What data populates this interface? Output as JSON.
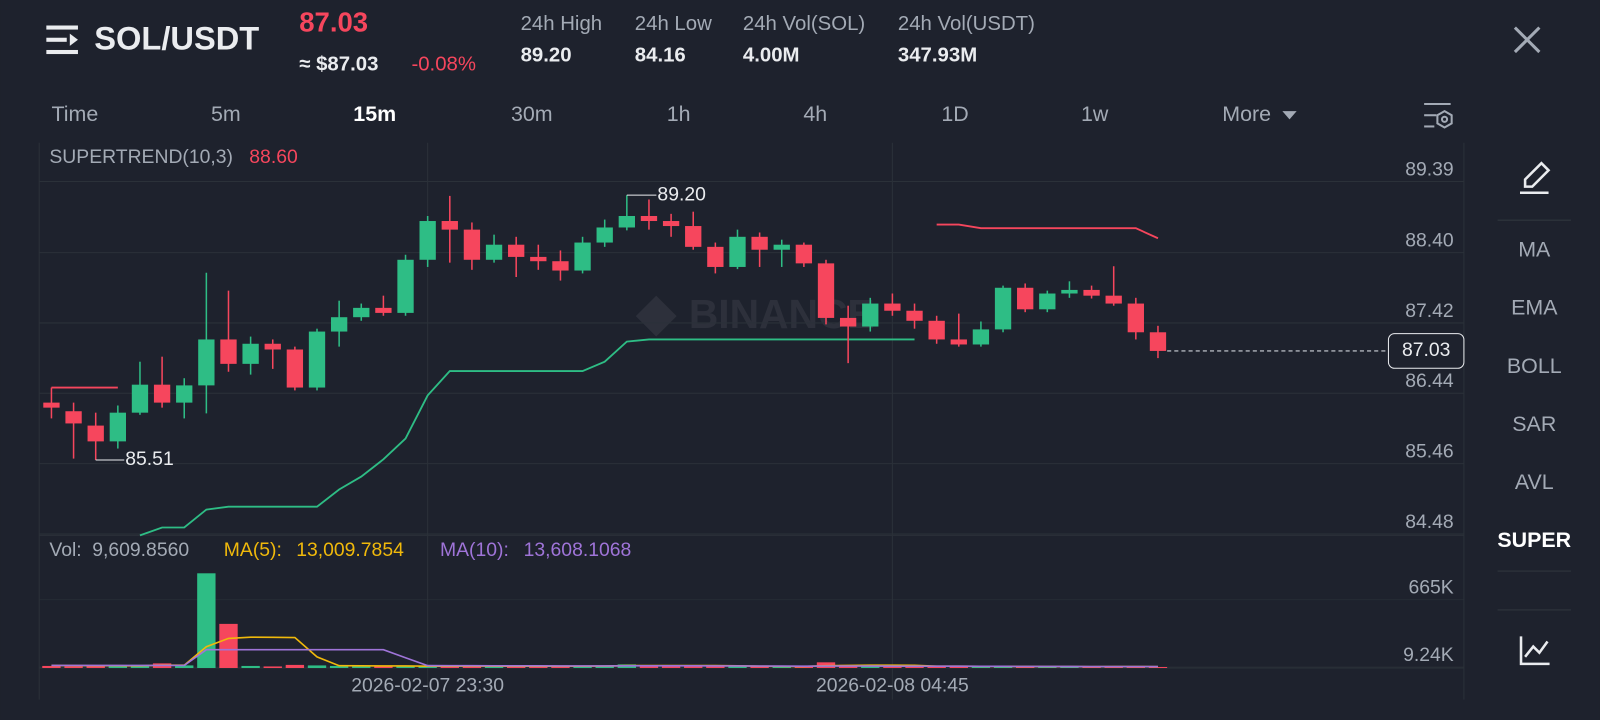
{
  "header": {
    "pair": "SOL/USDT",
    "last_price": "87.03",
    "usd_price": "≈ $87.03",
    "change": "-0.08%",
    "stats": [
      {
        "label": "24h High",
        "value": "89.20"
      },
      {
        "label": "24h Low",
        "value": "84.16"
      },
      {
        "label": "24h Vol(SOL)",
        "value": "4.00M"
      },
      {
        "label": "24h Vol(USDT)",
        "value": "347.93M"
      }
    ]
  },
  "intervals": {
    "items": [
      "Time",
      "5m",
      "15m",
      "30m",
      "1h",
      "4h",
      "1D",
      "1w",
      "More"
    ],
    "active": 2
  },
  "indicators": {
    "items": [
      "MA",
      "EMA",
      "BOLL",
      "SAR",
      "AVL",
      "SUPER"
    ],
    "active": 5
  },
  "watermark": "BINANCE",
  "chart_data": [
    {
      "type": "candlestick",
      "categories": [
        null,
        null,
        null,
        null,
        null,
        null,
        null,
        null,
        null,
        null,
        null,
        null,
        null,
        null,
        null,
        null,
        null,
        "2026-02-07 23:30",
        null,
        null,
        null,
        null,
        null,
        null,
        null,
        null,
        null,
        null,
        null,
        null,
        null,
        null,
        null,
        null,
        null,
        null,
        null,
        null,
        "2026-02-08 04:45",
        null,
        null,
        null,
        null,
        null,
        null,
        null,
        null,
        null,
        null,
        null,
        null
      ],
      "open": [
        86.31,
        86.19,
        85.99,
        85.77,
        86.17,
        86.56,
        86.31,
        86.55,
        87.19,
        86.85,
        87.13,
        87.05,
        86.52,
        87.3,
        87.5,
        87.63,
        87.56,
        88.3,
        88.84,
        88.72,
        88.3,
        88.51,
        88.34,
        88.28,
        88.15,
        88.54,
        88.75,
        88.91,
        88.84,
        88.77,
        88.48,
        88.2,
        88.62,
        88.44,
        88.51,
        88.25,
        87.49,
        87.37,
        87.69,
        87.59,
        87.45,
        87.19,
        87.12,
        87.33,
        87.91,
        87.61,
        87.83,
        87.88,
        87.8,
        87.69,
        87.29
      ],
      "high": [
        86.52,
        86.31,
        86.17,
        86.27,
        86.88,
        86.95,
        86.65,
        88.12,
        87.87,
        87.23,
        87.19,
        87.09,
        87.34,
        87.73,
        87.69,
        87.8,
        88.37,
        88.91,
        89.19,
        88.82,
        88.65,
        88.62,
        88.51,
        88.43,
        88.62,
        88.86,
        89.2,
        89.14,
        88.94,
        88.97,
        88.54,
        88.72,
        88.68,
        88.58,
        88.54,
        88.3,
        87.66,
        87.77,
        87.83,
        87.69,
        87.52,
        87.55,
        87.44,
        87.94,
        87.97,
        87.87,
        88.0,
        87.94,
        88.21,
        87.77,
        87.38
      ],
      "low": [
        86.09,
        85.53,
        85.51,
        85.67,
        86.14,
        86.24,
        86.09,
        86.16,
        86.74,
        86.7,
        86.78,
        86.48,
        86.48,
        87.09,
        87.45,
        87.52,
        87.52,
        88.2,
        88.26,
        88.16,
        88.26,
        88.06,
        88.16,
        88.01,
        88.11,
        88.48,
        88.71,
        88.72,
        88.62,
        88.44,
        88.11,
        88.17,
        88.2,
        88.2,
        88.2,
        87.4,
        86.86,
        87.3,
        87.52,
        87.34,
        87.13,
        87.09,
        87.09,
        87.29,
        87.57,
        87.57,
        87.77,
        87.76,
        87.66,
        87.19,
        86.93
      ],
      "close": [
        86.24,
        86.02,
        85.77,
        86.17,
        86.56,
        86.31,
        86.55,
        87.19,
        86.85,
        87.13,
        87.05,
        86.52,
        87.3,
        87.5,
        87.63,
        87.56,
        88.3,
        88.84,
        88.72,
        88.3,
        88.51,
        88.34,
        88.28,
        88.15,
        88.54,
        88.75,
        88.91,
        88.84,
        88.77,
        88.48,
        88.2,
        88.62,
        88.44,
        88.51,
        88.25,
        87.49,
        87.37,
        87.69,
        87.59,
        87.45,
        87.19,
        87.12,
        87.33,
        87.91,
        87.61,
        87.83,
        87.88,
        87.8,
        87.69,
        87.29,
        87.03
      ],
      "up_color": "#2ebd85",
      "down_color": "#f6465d",
      "ylim": [
        84.46,
        89.93
      ],
      "yticks": [
        89.39,
        {
          "value": 88.4,
          "label": "88.40"
        },
        87.42,
        86.44,
        85.46,
        84.48
      ],
      "grid": true,
      "indicator": {
        "name": "SUPERTREND(10,3)",
        "value_label": "88.60",
        "series": [
          {
            "color": "#2ebd85",
            "values": [
              null,
              null,
              null,
              null,
              84.46,
              84.57,
              84.57,
              84.82,
              84.86,
              84.86,
              84.86,
              84.86,
              84.86,
              85.1,
              85.28,
              85.52,
              85.81,
              86.41,
              86.75,
              86.75,
              86.75,
              86.75,
              86.75,
              86.75,
              86.75,
              86.88,
              87.16,
              87.19,
              87.19,
              87.19,
              87.19,
              87.19,
              87.19,
              87.19,
              87.19,
              87.19,
              87.19,
              87.19,
              87.19,
              87.19,
              null,
              null,
              null,
              null,
              null,
              null,
              null,
              null,
              null,
              null,
              null
            ]
          },
          {
            "color": "#f6465d",
            "values": [
              86.52,
              86.52,
              86.52,
              86.52,
              null,
              null,
              null,
              null,
              null,
              null,
              null,
              null,
              null,
              null,
              null,
              null,
              null,
              null,
              null,
              null,
              null,
              null,
              null,
              null,
              null,
              null,
              null,
              null,
              null,
              null,
              null,
              null,
              null,
              null,
              null,
              null,
              null,
              null,
              null,
              null,
              88.79,
              88.79,
              88.74,
              88.74,
              88.74,
              88.74,
              88.74,
              88.74,
              88.74,
              88.74,
              88.6
            ]
          }
        ]
      },
      "high_marker": {
        "index": 26,
        "label": "89.20"
      },
      "low_marker": {
        "index": 2,
        "label": "85.51"
      },
      "last_price_label": "87.03"
    },
    {
      "type": "bar",
      "name": "Vol:",
      "value_label": "9,609.8560",
      "values": [
        20000,
        15000,
        25000,
        18000,
        30000,
        45000,
        25000,
        921000,
        429000,
        20000,
        15000,
        30000,
        25000,
        20000,
        15000,
        18000,
        22000,
        15000,
        20000,
        18000,
        15000,
        20000,
        15000,
        15000,
        20000,
        25000,
        35000,
        25000,
        20000,
        15000,
        18000,
        15000,
        15000,
        12000,
        15000,
        55000,
        30000,
        20000,
        15000,
        12000,
        12000,
        15000,
        12000,
        20000,
        15000,
        12000,
        12000,
        12000,
        15000,
        18000,
        9609.856
      ],
      "ylim": [
        0,
        1240000
      ],
      "yticks": [
        {
          "value": 665000,
          "label": "665K"
        },
        {
          "value": 9240,
          "label": "9.24K"
        }
      ],
      "series": [
        {
          "name": "MA(5):",
          "value_label": "13,009.7854",
          "color": "#f0b90b",
          "values": [
            25000,
            24000,
            22000,
            22000,
            21000,
            27000,
            27000,
            207000,
            288000,
            300000,
            298000,
            296000,
            108000,
            22000,
            21000,
            20000,
            20000,
            18000,
            18000,
            19000,
            18000,
            18000,
            18000,
            17000,
            18000,
            19000,
            23000,
            24000,
            24000,
            24000,
            23000,
            21000,
            18000,
            16000,
            15000,
            22000,
            25000,
            27000,
            27000,
            26000,
            18000,
            17000,
            16000,
            16000,
            15000,
            14000,
            14000,
            13000,
            13500,
            14000,
            13009.7854
          ]
        },
        {
          "name": "MA(10):",
          "value_label": "13,608.1068",
          "color": "#9f74d8",
          "values": [
            25000,
            25000,
            25000,
            25000,
            25000,
            25000,
            25000,
            178000,
            178000,
            178000,
            178000,
            178000,
            178000,
            178000,
            178000,
            178000,
            100000,
            23000,
            22000,
            22000,
            21000,
            21000,
            21000,
            20000,
            20000,
            20000,
            21000,
            21000,
            21000,
            21000,
            20000,
            20000,
            19000,
            19000,
            18000,
            19000,
            19000,
            19000,
            18000,
            18000,
            17000,
            17000,
            16000,
            16000,
            15000,
            15000,
            14500,
            14000,
            14000,
            13800,
            13608.1068
          ]
        }
      ]
    }
  ]
}
